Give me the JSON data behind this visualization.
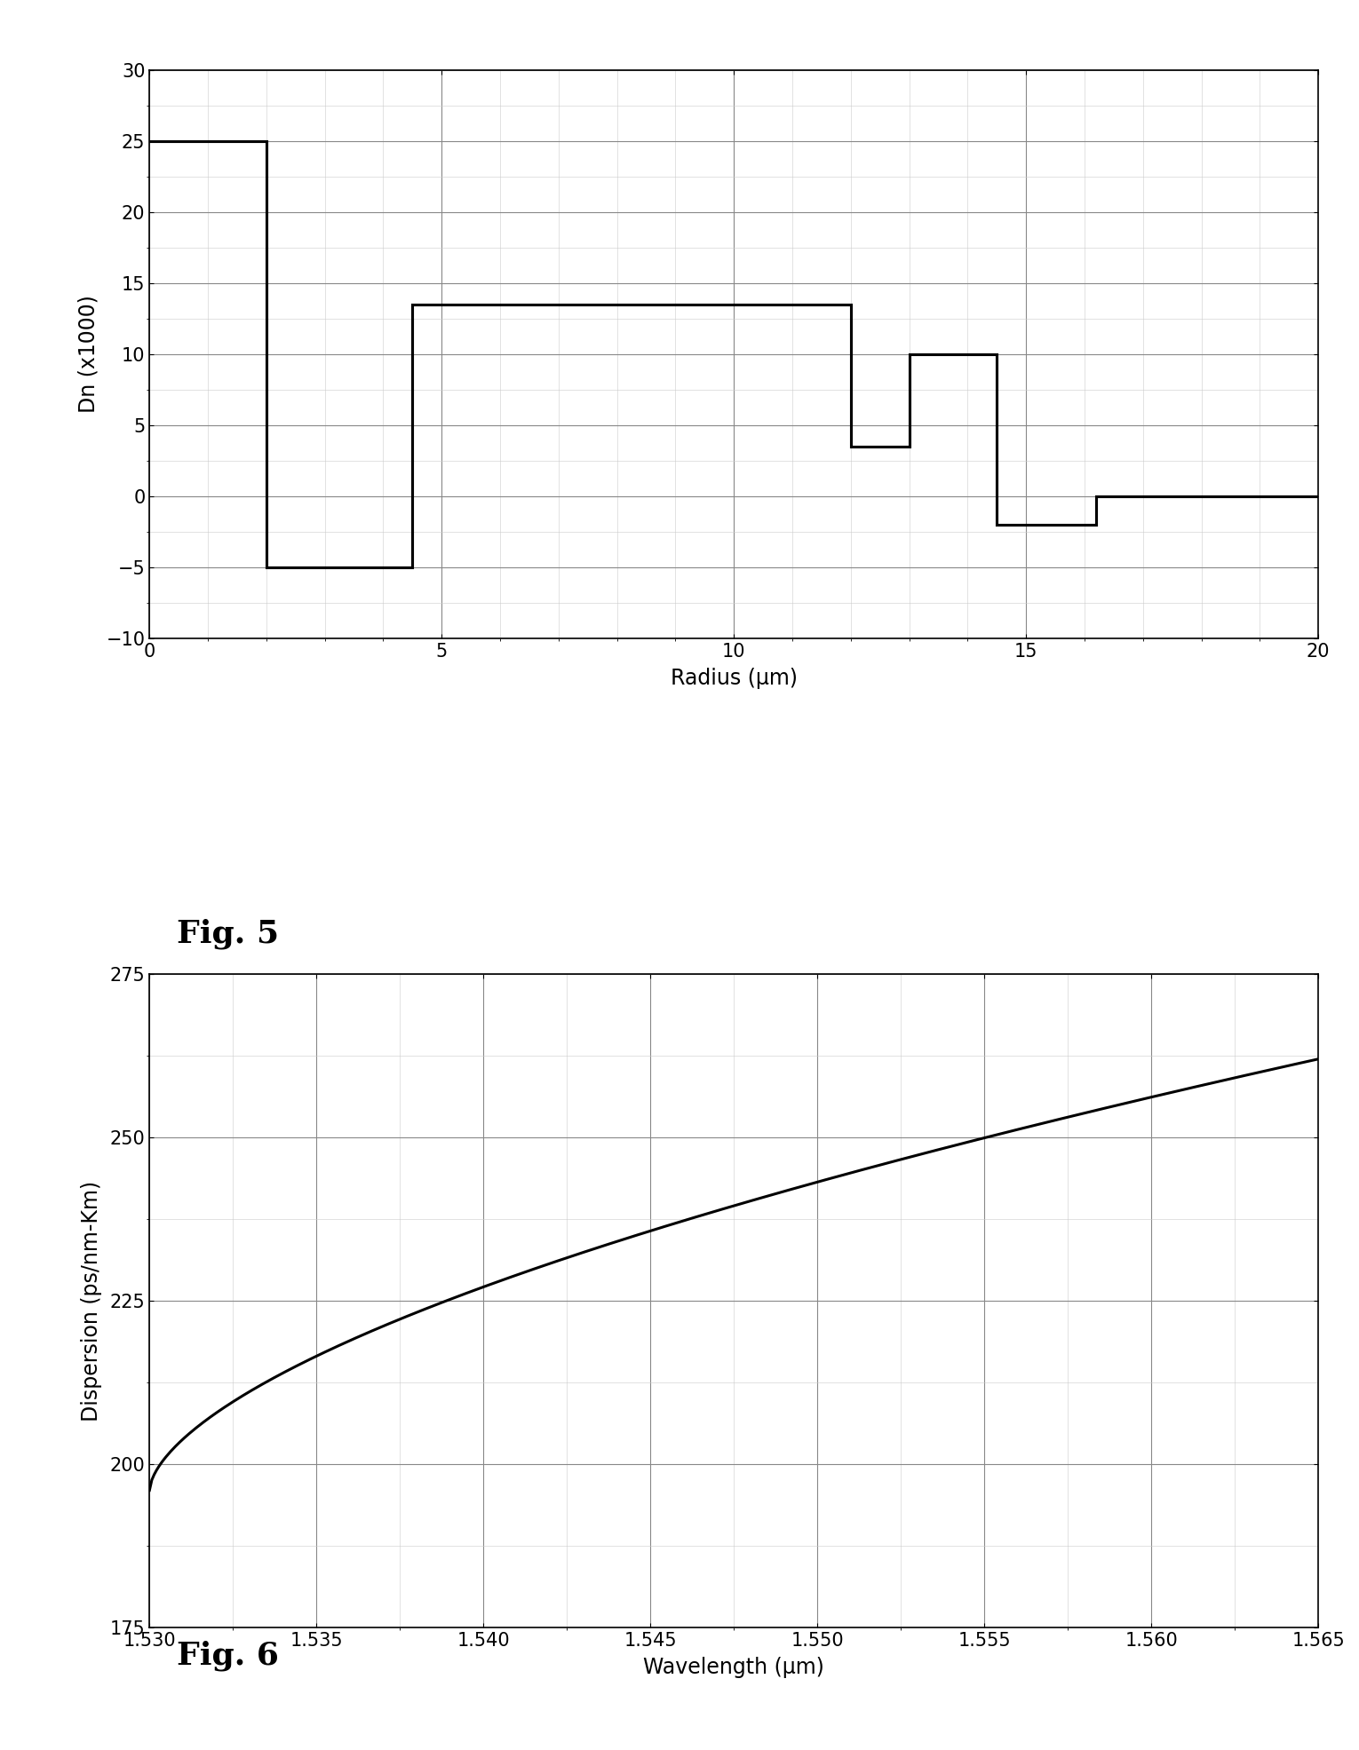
{
  "fig5": {
    "title": "Fig. 5",
    "xlabel": "Radius (μm)",
    "ylabel": "Dn (x1000)",
    "xlim": [
      0,
      20
    ],
    "ylim": [
      -10,
      30
    ],
    "yticks": [
      -10,
      -5,
      0,
      5,
      10,
      15,
      20,
      25,
      30
    ],
    "xticks": [
      0,
      5,
      10,
      15,
      20
    ],
    "step_x": [
      0,
      2,
      2,
      4.5,
      4.5,
      12.0,
      12.0,
      13.0,
      13.0,
      14.5,
      14.5,
      16.2,
      16.2,
      20
    ],
    "step_y": [
      25,
      25,
      -5,
      -5,
      13.5,
      13.5,
      3.5,
      3.5,
      10,
      10,
      -2,
      -2,
      0,
      0
    ]
  },
  "fig6": {
    "title": "Fig. 6",
    "xlabel": "Wavelength (μm)",
    "ylabel": "Dispersion (ps/nm-Km)",
    "xlim": [
      1.53,
      1.565
    ],
    "ylim": [
      175,
      275
    ],
    "yticks": [
      175,
      200,
      225,
      250,
      275
    ],
    "xticks": [
      1.53,
      1.535,
      1.54,
      1.545,
      1.55,
      1.555,
      1.56,
      1.565
    ],
    "disp_x0": 1.53,
    "disp_y0": 196.0,
    "disp_x1": 1.565,
    "disp_y1": 262.0,
    "disp_power": 0.6
  },
  "line_color": "#000000",
  "background_color": "#ffffff",
  "grid_color": "#888888",
  "fig_label_fontsize": 26,
  "axis_label_fontsize": 17,
  "tick_fontsize": 15,
  "line_width": 2.2
}
